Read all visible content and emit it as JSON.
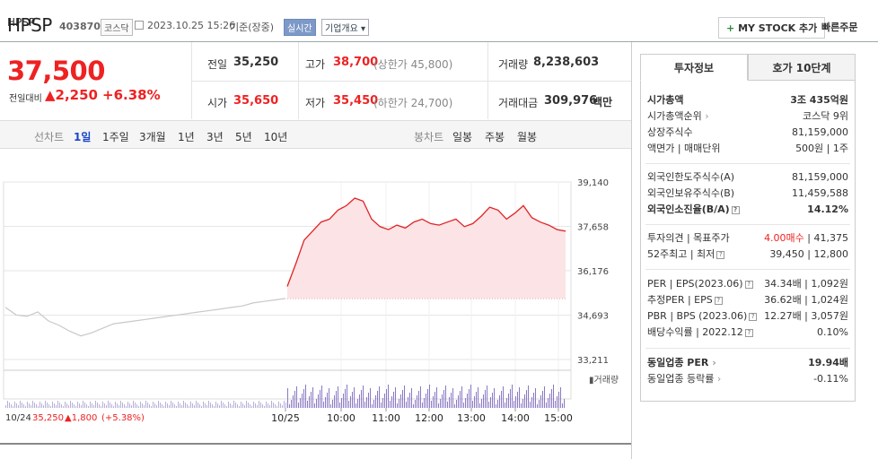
{
  "header": {
    "name": "HPSP",
    "code": "403870",
    "market": "코스닥",
    "datetime": "2023.10.25 15:26",
    "basis": "기준(장중)",
    "realtime_badge": "실시간",
    "company_info": "기업개요",
    "mystock_label": "MY STOCK 추가",
    "quick_order": "빠른주문"
  },
  "quote": {
    "price": "37,500",
    "change_label": "전일대비",
    "change": "2,250",
    "change_pct": "+6.38%",
    "prev_label": "전일",
    "prev": "35,250",
    "high_label": "고가",
    "high": "38,700",
    "upper_limit": "(상한가 45,800)",
    "volume_label": "거래량",
    "volume": "8,238,603",
    "open_label": "시가",
    "open": "35,650",
    "low_label": "저가",
    "low": "35,450",
    "lower_limit": "(하한가 24,700)",
    "amount_label": "거래대금",
    "amount": "309,976",
    "amount_unit": "백만"
  },
  "tabs": {
    "line_label": "선차트",
    "line": [
      "1일",
      "1주일",
      "3개월",
      "1년",
      "3년",
      "5년",
      "10년"
    ],
    "candle_label": "봉차트",
    "candle": [
      "일봉",
      "주봉",
      "월봉"
    ]
  },
  "chart_footer": {
    "prev_date": "10/24",
    "prev_price": "35,250",
    "prev_change": "1,800",
    "prev_change_pct": "(+5.38%)",
    "volume_label": "거래량"
  },
  "chart_data": {
    "type": "line",
    "yticks": [
      "39,140",
      "37,658",
      "36,176",
      "34,693",
      "33,211"
    ],
    "ylim": [
      33211,
      39140
    ],
    "xticks": [
      "10/25",
      "10:00",
      "11:00",
      "12:00",
      "13:00",
      "14:00",
      "15:00"
    ],
    "series": [
      {
        "name": "10/24",
        "values": [
          34950,
          34700,
          34650,
          34800,
          34500,
          34350,
          34150,
          34000,
          34100,
          34250,
          34400,
          34450,
          34500,
          34550,
          34600,
          34650,
          34700,
          34750,
          34800,
          34850,
          34900,
          34950,
          35000,
          35100,
          35150,
          35200,
          35250
        ]
      },
      {
        "name": "10/25",
        "values": [
          35650,
          36400,
          37200,
          37500,
          37800,
          37900,
          38200,
          38350,
          38600,
          38500,
          37900,
          37650,
          37550,
          37700,
          37600,
          37800,
          37900,
          37750,
          37700,
          37800,
          37900,
          37650,
          37750,
          38000,
          38300,
          38200,
          37900,
          38100,
          38350,
          37950,
          37800,
          37700,
          37550,
          37500
        ]
      }
    ],
    "baseline": 35250
  },
  "investment": {
    "tab_active": "투자정보",
    "tab_other": "호가 10단계",
    "rows": [
      {
        "label": "시가총액",
        "value": "3조 435억원"
      },
      {
        "label": "시가총액순위",
        "value": "코스닥 9위"
      },
      {
        "label": "상장주식수",
        "value": "81,159,000"
      },
      {
        "label": "액면가 | 매매단위",
        "value": "500원 | 1주"
      },
      {
        "label": "외국인한도주식수(A)",
        "value": "81,159,000"
      },
      {
        "label": "외국인보유주식수(B)",
        "value": "11,459,588"
      },
      {
        "label": "외국인소진율(B/A)",
        "value": "14.12%"
      },
      {
        "label": "투자의견 | 목표주가",
        "value_a": "4.00매수",
        "value_b": "41,375"
      },
      {
        "label": "52주최고 | 최저",
        "value": "39,450 | 12,800"
      },
      {
        "label": "PER | EPS(2023.06)",
        "value": "34.34배 | 1,092원"
      },
      {
        "label": "추정PER | EPS",
        "value": "36.62배 | 1,024원"
      },
      {
        "label": "PBR | BPS (2023.06)",
        "value": "12.27배 | 3,057원"
      },
      {
        "label": "배당수익률 | 2022.12",
        "value": "0.10%"
      },
      {
        "label": "동일업종 PER",
        "value": "19.94배"
      },
      {
        "label": "동일업종 등락률",
        "value": "-0.11%"
      }
    ]
  },
  "colors": {
    "up": "#e22222",
    "down": "#1a47c8",
    "fill": "#fbe3e6",
    "prev_line": "#c8c8c8",
    "volume": "#8b78c4"
  }
}
